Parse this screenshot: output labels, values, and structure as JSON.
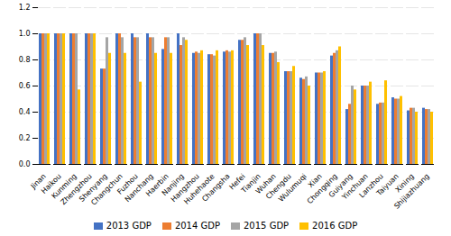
{
  "chart_data": {
    "type": "bar",
    "categories": [
      "Jinan",
      "Haikou",
      "Kunming",
      "Zhengzhou",
      "Shenyang",
      "Changchun",
      "Fuzhou",
      "Nanchang",
      "Haerbin",
      "Nanjing",
      "Hangzhou",
      "Huhehaote",
      "Changsha",
      "Hefei",
      "Tianjin",
      "Wuhan",
      "Chengdu",
      "Wulumuqi",
      "Xian",
      "Chongqing",
      "Guiyang",
      "Yinchuan",
      "Lanzhou",
      "Taiyuan",
      "Xining",
      "Shijiazhuang"
    ],
    "series": [
      {
        "name": "2013 GDP",
        "color": "#4472C4",
        "values": [
          1.0,
          1.0,
          1.0,
          1.0,
          0.73,
          1.0,
          1.0,
          1.0,
          0.88,
          1.0,
          0.85,
          0.84,
          0.86,
          0.95,
          1.0,
          0.85,
          0.71,
          0.66,
          0.7,
          0.83,
          0.42,
          0.6,
          0.46,
          0.51,
          0.41,
          0.43
        ]
      },
      {
        "name": "2014 GDP",
        "color": "#ED7D31",
        "values": [
          1.0,
          1.0,
          1.0,
          1.0,
          0.73,
          1.0,
          0.97,
          0.97,
          0.97,
          0.91,
          0.86,
          0.84,
          0.87,
          0.95,
          1.0,
          0.85,
          0.71,
          0.65,
          0.7,
          0.85,
          0.46,
          0.6,
          0.47,
          0.5,
          0.43,
          0.42
        ]
      },
      {
        "name": "2015 GDP",
        "color": "#A5A5A5",
        "values": [
          1.0,
          1.0,
          1.0,
          1.0,
          0.97,
          0.97,
          0.97,
          0.97,
          0.97,
          0.97,
          0.85,
          0.83,
          0.86,
          0.97,
          1.0,
          0.86,
          0.71,
          0.67,
          0.7,
          0.87,
          0.6,
          0.6,
          0.47,
          0.5,
          0.43,
          0.42
        ]
      },
      {
        "name": "2016 GDP",
        "color": "#FFC000",
        "values": [
          1.0,
          1.0,
          0.57,
          1.0,
          0.85,
          0.85,
          0.63,
          0.85,
          0.85,
          0.95,
          0.87,
          0.87,
          0.87,
          0.91,
          0.91,
          0.78,
          0.75,
          0.6,
          0.71,
          0.9,
          0.57,
          0.63,
          0.64,
          0.52,
          0.4,
          0.4
        ]
      }
    ],
    "ylim": [
      0,
      1.2
    ],
    "yticks": [
      {
        "value": 0,
        "label": "0.0"
      },
      0.2,
      0.4,
      0.6,
      0.8,
      {
        "value": 1.0,
        "label": "1.0"
      },
      1.2
    ],
    "grid": true,
    "legend": "bottom"
  }
}
